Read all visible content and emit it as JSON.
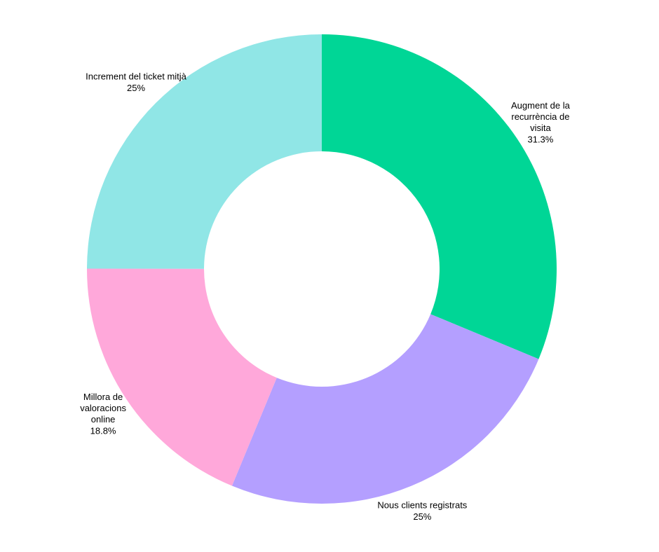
{
  "chart_data": {
    "type": "donut",
    "categories": [
      "Augment de la recurrència de visita",
      "Nous clients registrats",
      "Millora de valoracions online",
      "Increment del ticket mitjà"
    ],
    "values": [
      31.3,
      25,
      18.8,
      25
    ],
    "value_labels": [
      "31.3%",
      "25%",
      "18.8%",
      "25%"
    ],
    "colors": [
      "#00d696",
      "#b49fff",
      "#ffa8da",
      "#90e6e6"
    ]
  }
}
